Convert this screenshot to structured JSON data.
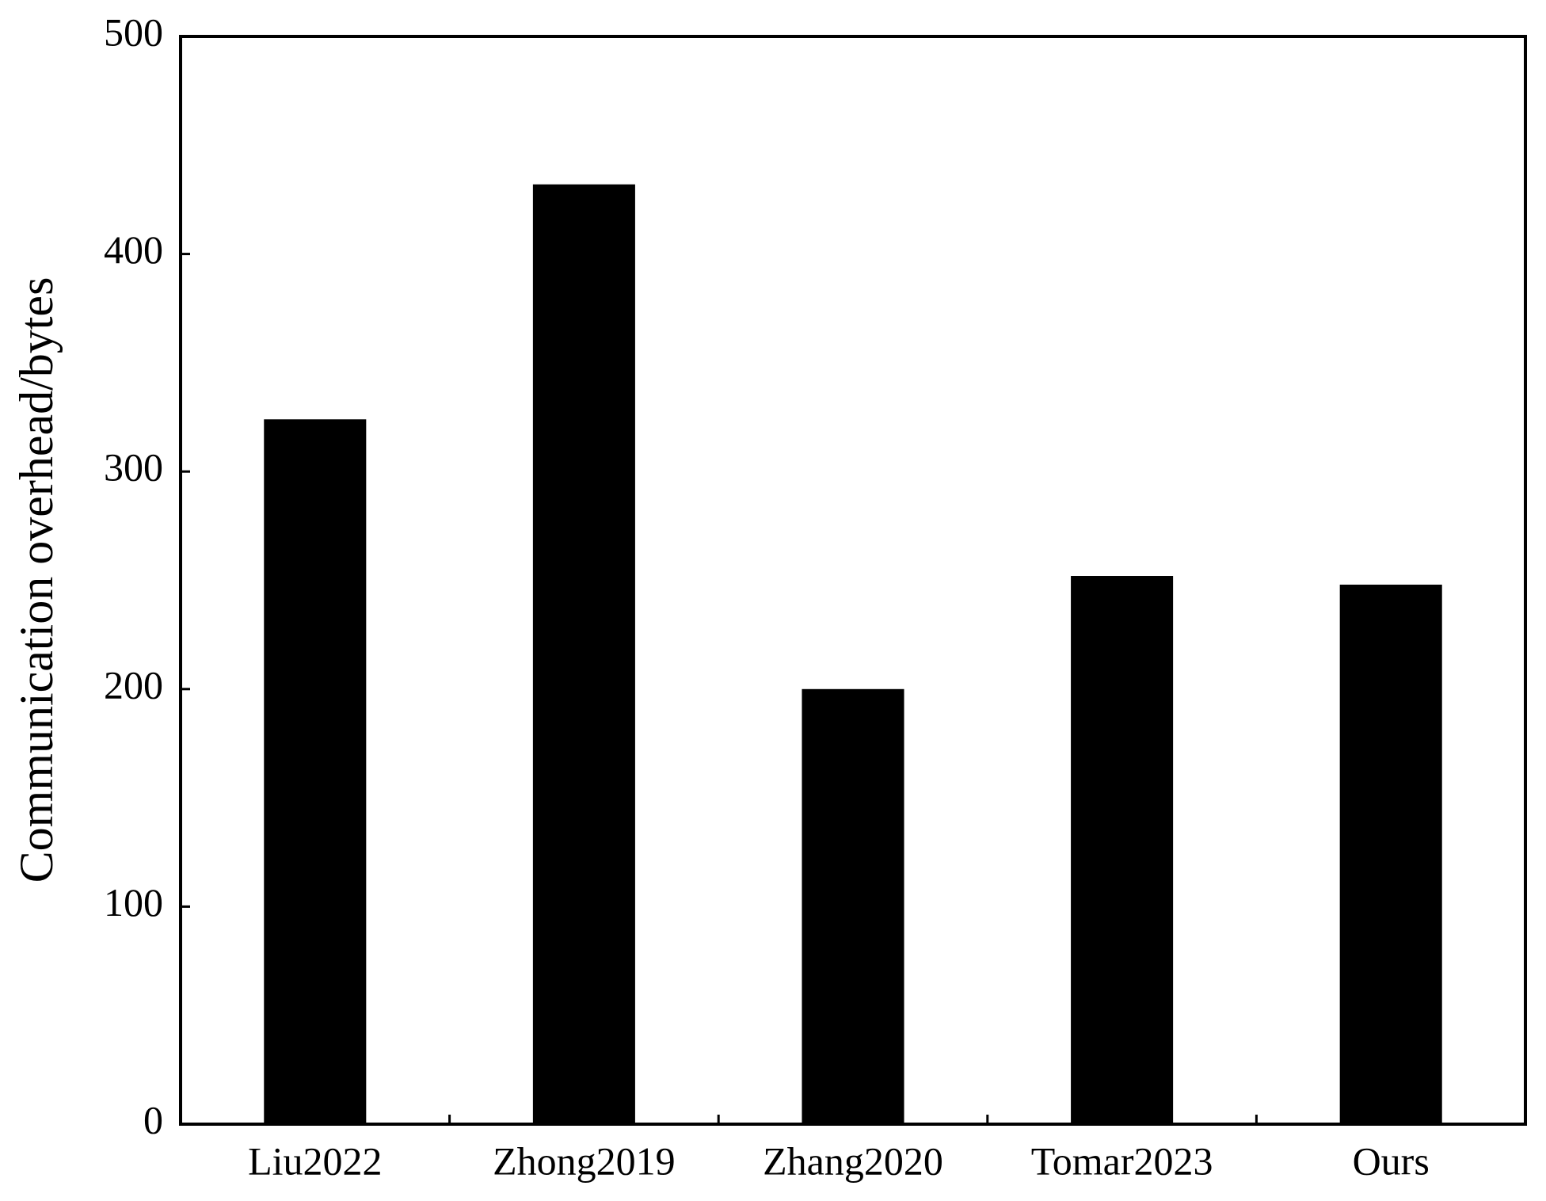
{
  "chart_data": {
    "type": "bar",
    "y_label": "Communication overhead/bytes",
    "categories": [
      "Liu2022",
      "Zhong2019",
      "Zhang2020",
      "Tomar2023",
      "Ours"
    ],
    "values": [
      324,
      432,
      200,
      252,
      248
    ],
    "color": "#000000",
    "ylim": [
      0,
      500
    ],
    "yticks": [
      0,
      100,
      200,
      300,
      400,
      500
    ],
    "grid": false
  }
}
